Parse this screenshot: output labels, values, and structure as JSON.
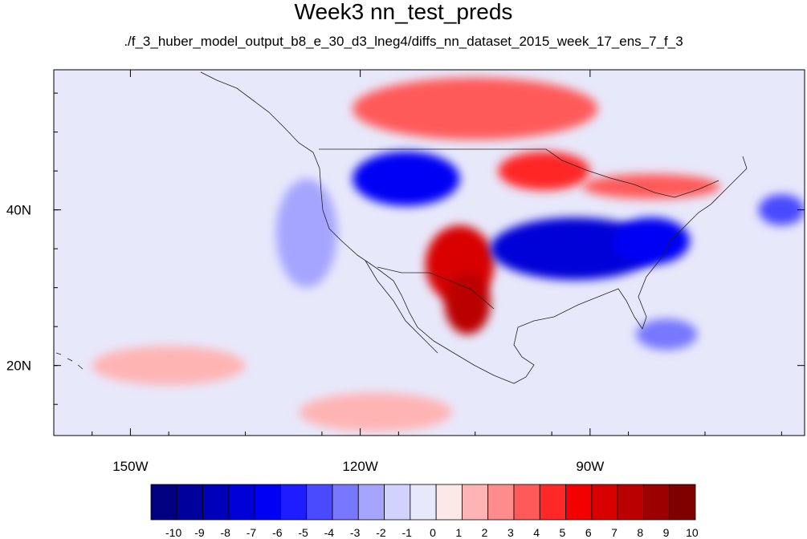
{
  "title": "Week3 nn_test_preds",
  "subtitle": "./f_3_huber_model_output_b8_e_30_d3_lneg4/diffs_nn_dataset_2015_week_17_ens_7_f_3",
  "map": {
    "lon_range": [
      -160,
      -62
    ],
    "lat_range": [
      11,
      58
    ],
    "x_ticks": [
      {
        "lon": -150,
        "label": "150W"
      },
      {
        "lon": -120,
        "label": "120W"
      },
      {
        "lon": -90,
        "label": "90W"
      }
    ],
    "y_ticks": [
      {
        "lat": 40,
        "label": "40N"
      },
      {
        "lat": 20,
        "label": "20N"
      }
    ],
    "background_level": "0"
  },
  "colorbar": {
    "labels": [
      "-10",
      "-9",
      "-8",
      "-7",
      "-6",
      "-5",
      "-4",
      "-3",
      "-2",
      "-1",
      "0",
      "1",
      "2",
      "3",
      "4",
      "5",
      "6",
      "7",
      "8",
      "9",
      "10"
    ],
    "colors": [
      "#000080",
      "#00009d",
      "#0000bb",
      "#0000d8",
      "#0000f5",
      "#1d1dff",
      "#4a4aff",
      "#7777ff",
      "#a5a5ff",
      "#d2d2ff",
      "#e8e8fb",
      "#fde8e8",
      "#ffb4b4",
      "#ff8c8c",
      "#ff5a5a",
      "#ff2828",
      "#f50000",
      "#d80000",
      "#bb0000",
      "#9d0000",
      "#800000"
    ]
  },
  "anomaly_regions": [
    {
      "name": "canada-positive",
      "level": "4",
      "lon": -105,
      "lat": 53,
      "rlon": 16,
      "rlat": 4
    },
    {
      "name": "north-plains-positive",
      "level": "5",
      "lon": -96,
      "lat": 45,
      "rlon": 6,
      "rlat": 2.5
    },
    {
      "name": "great-lakes-positive",
      "level": "4",
      "lon": -82,
      "lat": 43,
      "rlon": 9,
      "rlat": 1.6
    },
    {
      "name": "northwest-negative",
      "level": "-6",
      "lon": -114,
      "lat": 44,
      "rlon": 7,
      "rlat": 3.5
    },
    {
      "name": "southwest-positive",
      "level": "7",
      "lon": -107,
      "lat": 33,
      "rlon": 4.5,
      "rlat": 5
    },
    {
      "name": "mexico-positive",
      "level": "8",
      "lon": -106,
      "lat": 28,
      "rlon": 3,
      "rlat": 4
    },
    {
      "name": "south-central-negative",
      "level": "-7",
      "lon": -92,
      "lat": 35,
      "rlon": 11,
      "rlat": 4
    },
    {
      "name": "east-negative",
      "level": "-6",
      "lon": -82,
      "lat": 36,
      "rlon": 5,
      "rlat": 3
    },
    {
      "name": "west-pacific-negative",
      "level": "-2",
      "lon": -127,
      "lat": 37,
      "rlon": 4,
      "rlat": 7
    },
    {
      "name": "atlantic-negative",
      "level": "-4",
      "lon": -65,
      "lat": 40,
      "rlon": 3,
      "rlat": 2
    },
    {
      "name": "pacific-positive",
      "level": "2",
      "lon": -145,
      "lat": 20,
      "rlon": 10,
      "rlat": 2.5
    },
    {
      "name": "tropical-positive",
      "level": "2",
      "lon": -118,
      "lat": 14,
      "rlon": 10,
      "rlat": 2.5
    },
    {
      "name": "caribbean-negative",
      "level": "-3",
      "lon": -80,
      "lat": 24,
      "rlon": 4,
      "rlat": 2
    }
  ]
}
